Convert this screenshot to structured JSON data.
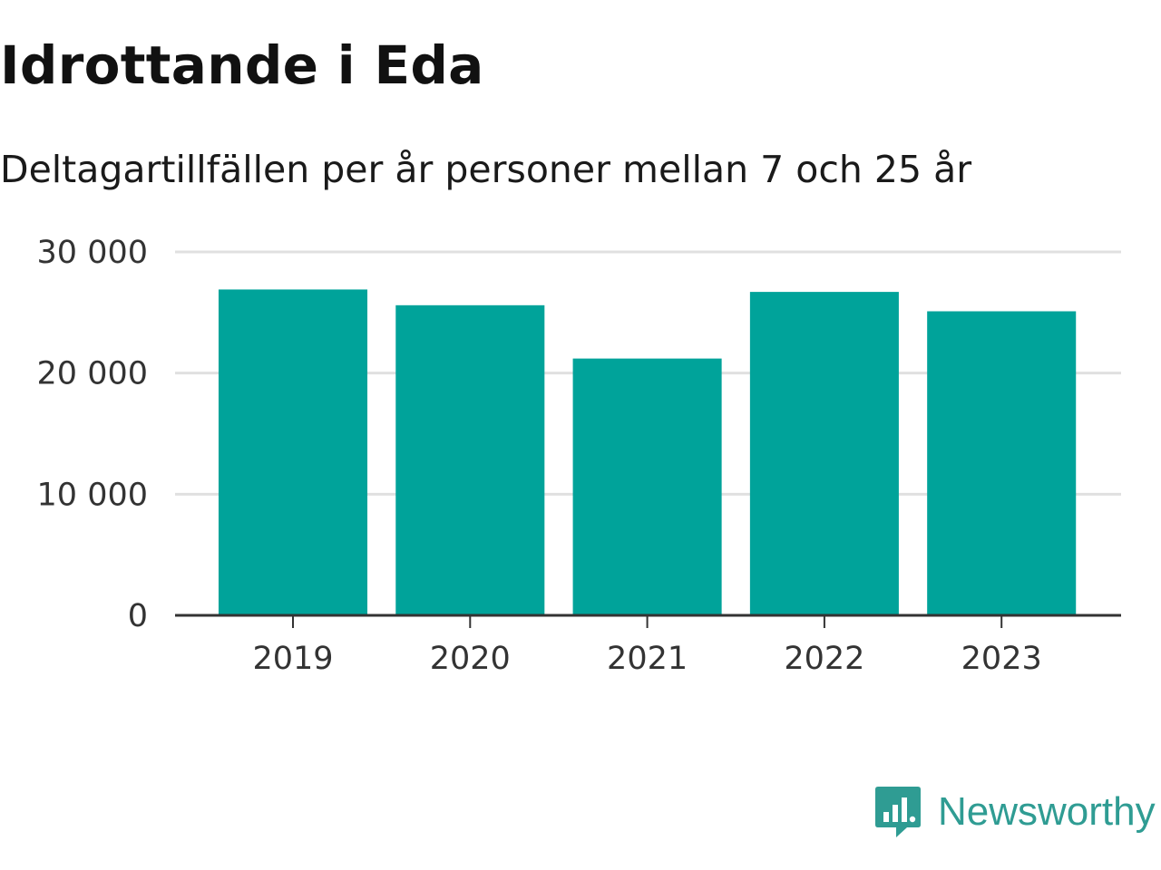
{
  "title": "Idrottande i Eda",
  "subtitle": "Deltagartillfällen per år personer mellan 7 och 25 år",
  "chart_data": {
    "type": "bar",
    "categories": [
      "2019",
      "2020",
      "2021",
      "2022",
      "2023"
    ],
    "values": [
      26900,
      25600,
      21200,
      26700,
      25100
    ],
    "ylim": [
      0,
      30000
    ],
    "yticks": [
      0,
      10000,
      20000,
      30000
    ],
    "ytick_labels": [
      "0",
      "10 000",
      "20 000",
      "30 000"
    ],
    "xlabel": "",
    "ylabel": "",
    "grid": true,
    "bar_color": "#00a39a",
    "gridline_color": "#e0e0e0",
    "axis_color": "#333333"
  },
  "logo": {
    "text": "Newsworthy",
    "icon": "newsworthy-logo-icon",
    "color": "#2f9c93"
  }
}
